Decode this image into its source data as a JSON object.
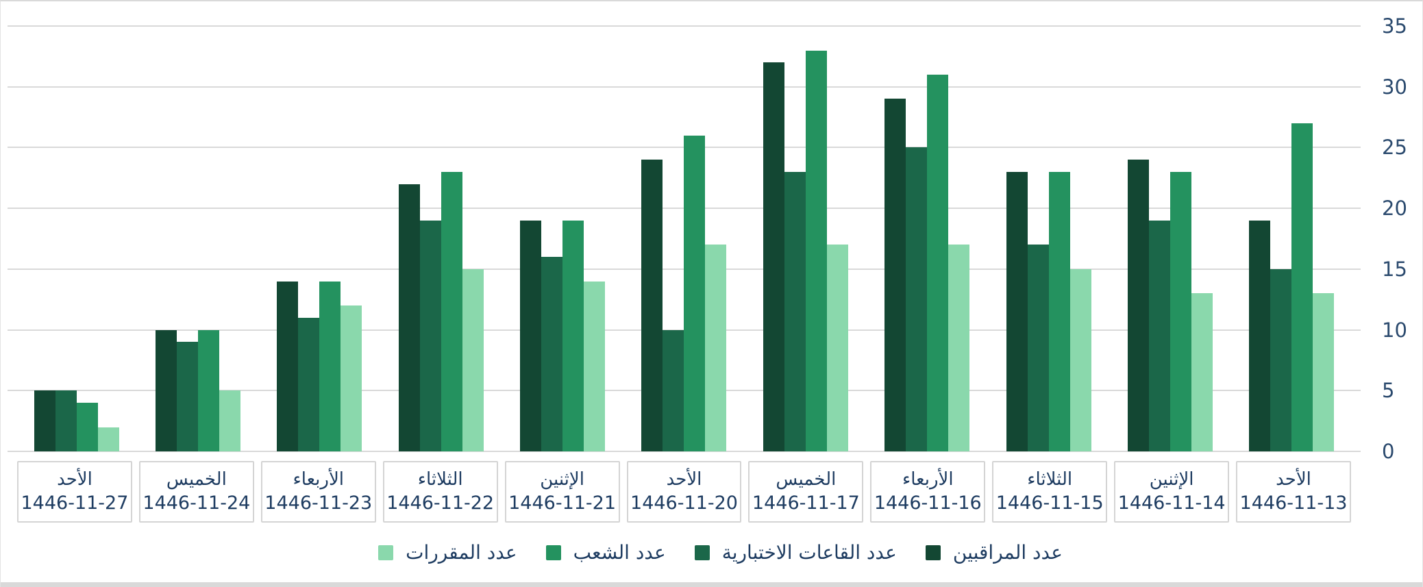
{
  "page": {
    "background": "#ffffff",
    "frame_border_color": "#d9d9d9",
    "bottom_strip_color": "#d9d9d9"
  },
  "chart_data": {
    "type": "bar",
    "direction": "rtl",
    "title": "",
    "xlabel": "",
    "ylabel": "",
    "ylim": [
      0,
      35
    ],
    "y_ticks": [
      0,
      5,
      10,
      15,
      20,
      25,
      30,
      35
    ],
    "grid": true,
    "legend_position": "bottom",
    "axis_text_color": "#2b4a6e",
    "label_text_color": "#1e3c61",
    "gridline_color": "#d9d9d9",
    "category_box_border_color": "#d4d4d4",
    "categories": [
      {
        "day": "الأحد",
        "date": "1446-11-27"
      },
      {
        "day": "الخميس",
        "date": "1446-11-24"
      },
      {
        "day": "الأربعاء",
        "date": "1446-11-23"
      },
      {
        "day": "الثلاثاء",
        "date": "1446-11-22"
      },
      {
        "day": "الإثنين",
        "date": "1446-11-21"
      },
      {
        "day": "الأحد",
        "date": "1446-11-20"
      },
      {
        "day": "الخميس",
        "date": "1446-11-17"
      },
      {
        "day": "الأربعاء",
        "date": "1446-11-16"
      },
      {
        "day": "الثلاثاء",
        "date": "1446-11-15"
      },
      {
        "day": "الإثنين",
        "date": "1446-11-14"
      },
      {
        "day": "الأحد",
        "date": "1446-11-13"
      }
    ],
    "series": [
      {
        "name": "عدد المراقبين",
        "color": "#134733",
        "values": [
          5,
          10,
          14,
          22,
          19,
          24,
          32,
          29,
          23,
          24,
          19
        ]
      },
      {
        "name": "عدد القاعات الاختبارية",
        "color": "#1b6749",
        "values": [
          5,
          9,
          11,
          19,
          16,
          10,
          23,
          25,
          17,
          19,
          15
        ]
      },
      {
        "name": "عدد الشعب",
        "color": "#24925f",
        "values": [
          4,
          10,
          14,
          23,
          19,
          26,
          33,
          31,
          23,
          23,
          27
        ]
      },
      {
        "name": "عدد المقررات",
        "color": "#8ad8ac",
        "values": [
          2,
          5,
          12,
          15,
          14,
          17,
          17,
          17,
          15,
          13,
          13
        ]
      }
    ],
    "legend_order_right_to_left": [
      "عدد المراقبين",
      "عدد القاعات الاختبارية",
      "عدد الشعب",
      "عدد المقررات"
    ]
  }
}
